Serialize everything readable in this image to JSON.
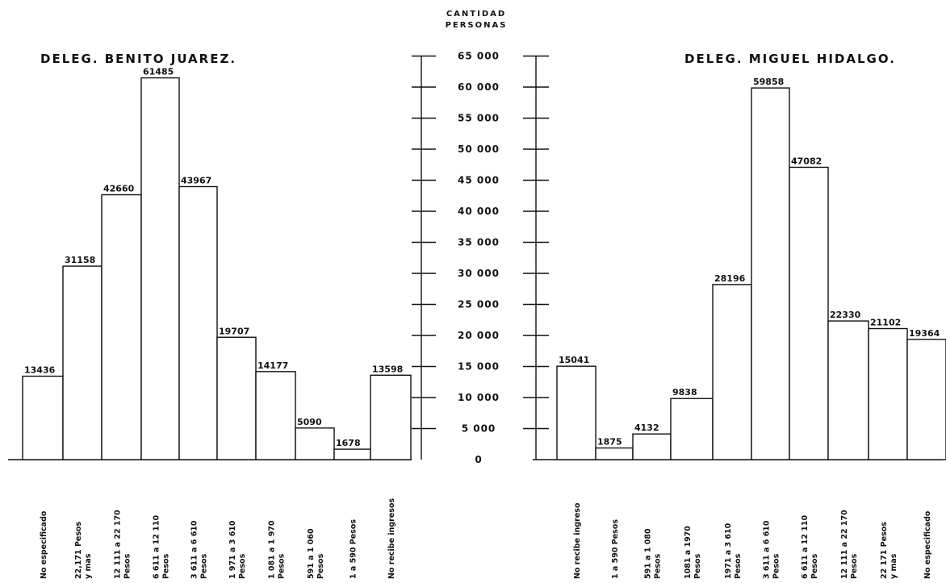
{
  "axis_title": [
    "CANTIDAD",
    "PERSONAS"
  ],
  "chart_data": [
    {
      "type": "bar",
      "title": "DELEG. BENITO JUAREZ.",
      "ylim": [
        0,
        65000
      ],
      "yticks": [
        "0",
        "5 000",
        "10 000",
        "15 000",
        "20 000",
        "25 000",
        "30 000",
        "35 000",
        "40 000",
        "45 000",
        "50 000",
        "55 000",
        "60 000",
        "65 000"
      ],
      "categories": [
        [
          "No especificado"
        ],
        [
          "22,171 Pesos",
          "y mas"
        ],
        [
          "12 111 a 22 170",
          "Pesos"
        ],
        [
          "6 611 a 12 110",
          "Pesos"
        ],
        [
          "3 611 a 6 610",
          "Pesos"
        ],
        [
          "1 971 a 3 610",
          "Pesos"
        ],
        [
          "1 081 a 1 970",
          "Pesos"
        ],
        [
          "591 a 1 060",
          "Pesos"
        ],
        [
          "1 a 590 Pesos"
        ],
        [
          "No recibe ingresos"
        ]
      ],
      "values": [
        13436,
        31158,
        42660,
        61485,
        43967,
        19707,
        14177,
        5090,
        1678,
        13598
      ],
      "labels": [
        "13436",
        "31158",
        "42660",
        "61485",
        "43967",
        "19707",
        "14177",
        "5090",
        "1678",
        "13598"
      ]
    },
    {
      "type": "bar",
      "title": "DELEG. MIGUEL HIDALGO.",
      "ylim": [
        0,
        65000
      ],
      "categories": [
        [
          "No recibe ingreso"
        ],
        [
          "1 a 590 Pesos"
        ],
        [
          "591 a 1 080",
          "Pesos"
        ],
        [
          "1081 a 1970",
          "Pesos"
        ],
        [
          "1971 a 3 610",
          "Pesos"
        ],
        [
          "3 611 a 6 610",
          "Pesos"
        ],
        [
          "6 611 a 12 110",
          "Pesos"
        ],
        [
          "12 111 a 22 170",
          "Pesos"
        ],
        [
          "22 171 Pesos",
          "y mas"
        ],
        [
          "No especificado"
        ]
      ],
      "values": [
        15041,
        1875,
        4132,
        9838,
        28196,
        59858,
        47082,
        22330,
        21102,
        19364
      ],
      "labels": [
        "15041",
        "1875",
        "4132",
        "9838",
        "28196",
        "59858",
        "47082",
        "22330",
        "21102",
        "19364"
      ]
    }
  ]
}
